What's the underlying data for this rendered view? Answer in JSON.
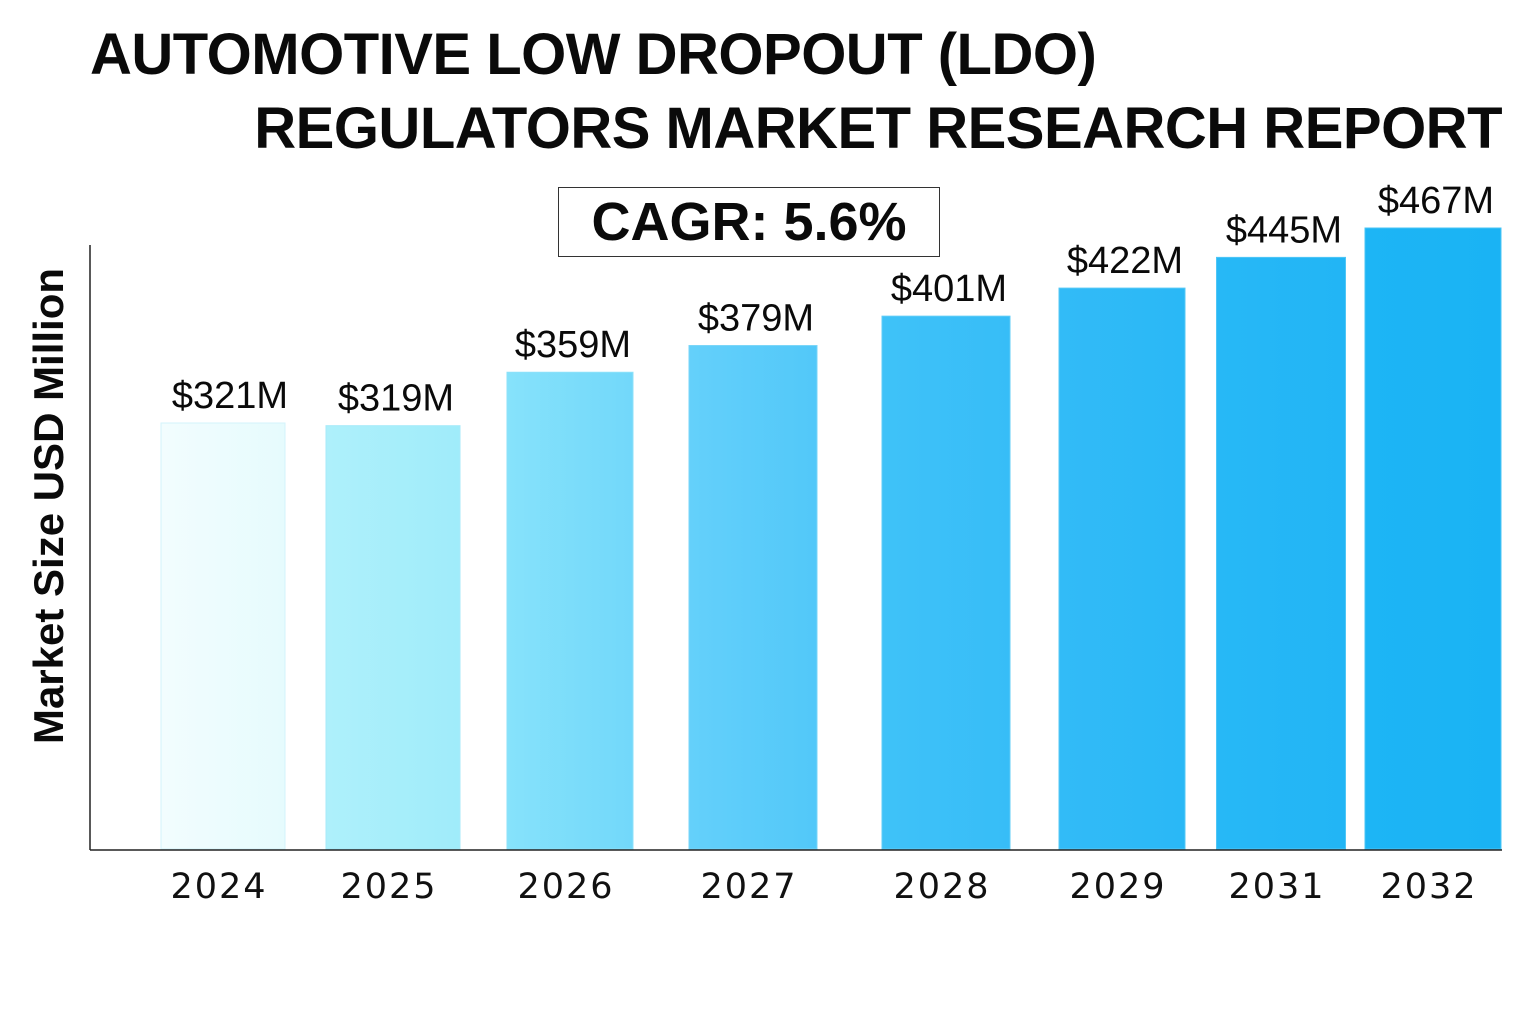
{
  "title": {
    "line1": "AUTOMOTIVE LOW DROPOUT (LDO)",
    "line2": "REGULATORS MARKET RESEARCH REPORT"
  },
  "cagr": {
    "label": "CAGR: 5.6%"
  },
  "chart_data": {
    "type": "bar",
    "title": "AUTOMOTIVE LOW DROPOUT (LDO) REGULATORS MARKET RESEARCH REPORT",
    "xlabel": "",
    "ylabel": "Market Size USD Million",
    "categories": [
      "2024",
      "2025",
      "2026",
      "2027",
      "2028",
      "2029",
      "2031",
      "2032"
    ],
    "values": [
      321,
      319,
      359,
      379,
      401,
      422,
      445,
      467
    ],
    "data_labels": [
      "$321M",
      "$319M",
      "$359M",
      "$379M",
      "$401M",
      "$422M",
      "$445M",
      "$467M"
    ],
    "grid": false,
    "legend": "none",
    "colors": {
      "bar_start": "#f0fdfe",
      "bar_end": "#1db6f5",
      "axis": "#222222",
      "text": "#0a0a0a"
    }
  }
}
